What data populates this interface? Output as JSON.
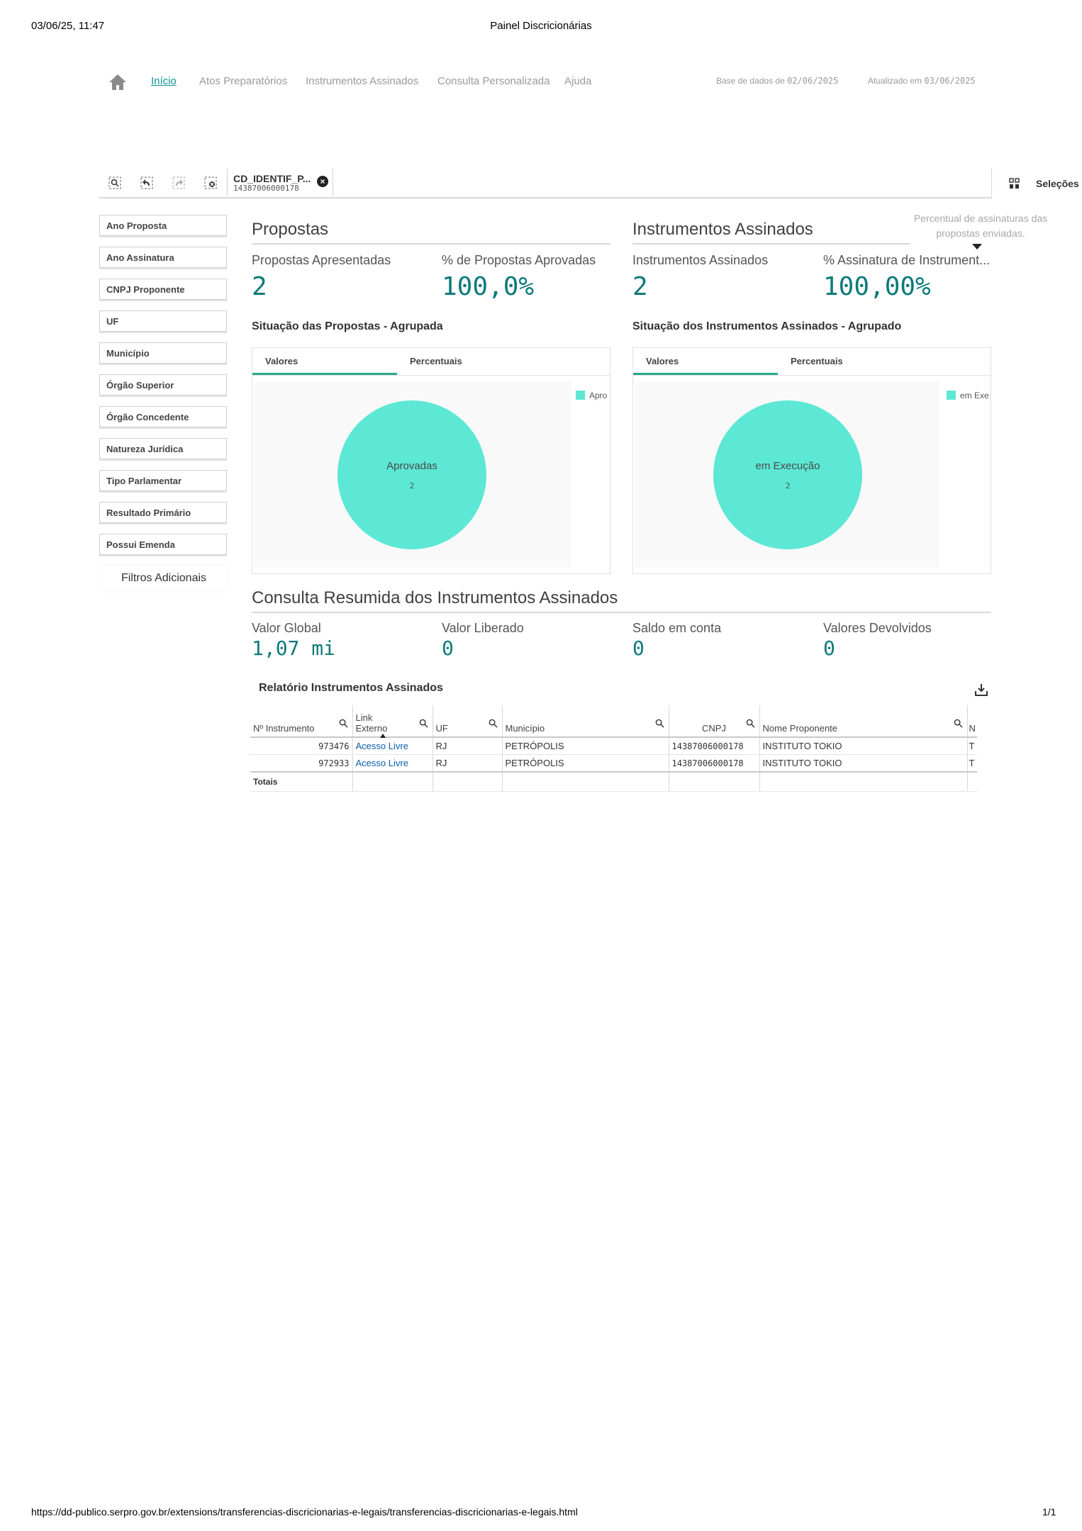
{
  "print_header": {
    "datetime": "03/06/25, 11:47",
    "page_title": "Painel Discricionárias"
  },
  "print_footer": {
    "url": "https://dd-publico.serpro.gov.br/extensions/transferencias-discricionarias-e-legais/transferencias-discricionarias-e-legais.html",
    "page_count": "1/1"
  },
  "nav": {
    "items": [
      "Início",
      "Atos Preparatórios",
      "Instrumentos Assinados",
      "Consulta Personalizada",
      "Ajuda"
    ],
    "base_label": "Base de dados de ",
    "base_date": "02/06/2025",
    "updated_label": "Atualizado em ",
    "updated_date": "03/06/2025"
  },
  "selection_bar": {
    "chip_field": "CD_IDENTIF_P...",
    "chip_value": "14387006000178",
    "selections_label": "Seleções"
  },
  "tooltip": "Percentual de assinaturas das propostas enviadas.",
  "filters": [
    "Ano Proposta",
    "Ano Assinatura",
    "CNPJ Proponente",
    "UF",
    "Município",
    "Órgão Superior",
    "Órgão Concedente",
    "Natureza Jurídica",
    "Tipo Parlamentar",
    "Resultado Primário",
    "Possui Emenda"
  ],
  "filters_more": "Filtros Adicionais",
  "propostas": {
    "title": "Propostas",
    "kpi1_label": "Propostas Apresentadas",
    "kpi1_value": "2",
    "kpi2_label": "% de Propostas Aprovadas",
    "kpi2_value": "100,0%",
    "chart_title": "Situação das Propostas - Agrupada",
    "tab_values": "Valores",
    "tab_percent": "Percentuais"
  },
  "instrumentos": {
    "title": "Instrumentos Assinados",
    "kpi1_label": "Instrumentos Assinados",
    "kpi1_value": "2",
    "kpi2_label": "% Assinatura de Instrument...",
    "kpi2_value": "100,00%",
    "chart_title": "Situação dos Instrumentos Assinados - Agrupado",
    "tab_values": "Valores",
    "tab_percent": "Percentuais"
  },
  "chart_data": [
    {
      "type": "pie",
      "title": "Situação das Propostas - Agrupada",
      "slices": [
        {
          "label": "Aprovadas",
          "value": 2,
          "color": "#5ce8d4"
        }
      ],
      "legend": [
        "Apro"
      ]
    },
    {
      "type": "pie",
      "title": "Situação dos Instrumentos Assinados - Agrupado",
      "slices": [
        {
          "label": "em Execução",
          "value": 2,
          "color": "#5ce8d4"
        }
      ],
      "legend": [
        "em Exe"
      ]
    }
  ],
  "consulta": {
    "title": "Consulta Resumida dos Instrumentos Assinados",
    "kpis": [
      {
        "label": "Valor Global",
        "value": "1,07 mi"
      },
      {
        "label": "Valor Liberado",
        "value": "0"
      },
      {
        "label": "Saldo em conta",
        "value": "0"
      },
      {
        "label": "Valores Devolvidos",
        "value": "0"
      }
    ]
  },
  "report": {
    "title": "Relatório Instrumentos Assinados",
    "columns": [
      "Nº Instrumento",
      "Link Externo",
      "UF",
      "Município",
      "CNPJ",
      "Nome Proponente",
      "N"
    ],
    "rows": [
      [
        "973476",
        "Acesso Livre",
        "RJ",
        "PETRÓPOLIS",
        "14387006000178",
        "INSTITUTO TOKIO",
        "T"
      ],
      [
        "972933",
        "Acesso Livre",
        "RJ",
        "PETRÓPOLIS",
        "14387006000178",
        "INSTITUTO TOKIO",
        "T"
      ]
    ],
    "totals_label": "Totais"
  },
  "colors": {
    "accent": "#0d7a7a",
    "pie": "#5ce8d4",
    "tab_underline": "#2aa88e"
  }
}
